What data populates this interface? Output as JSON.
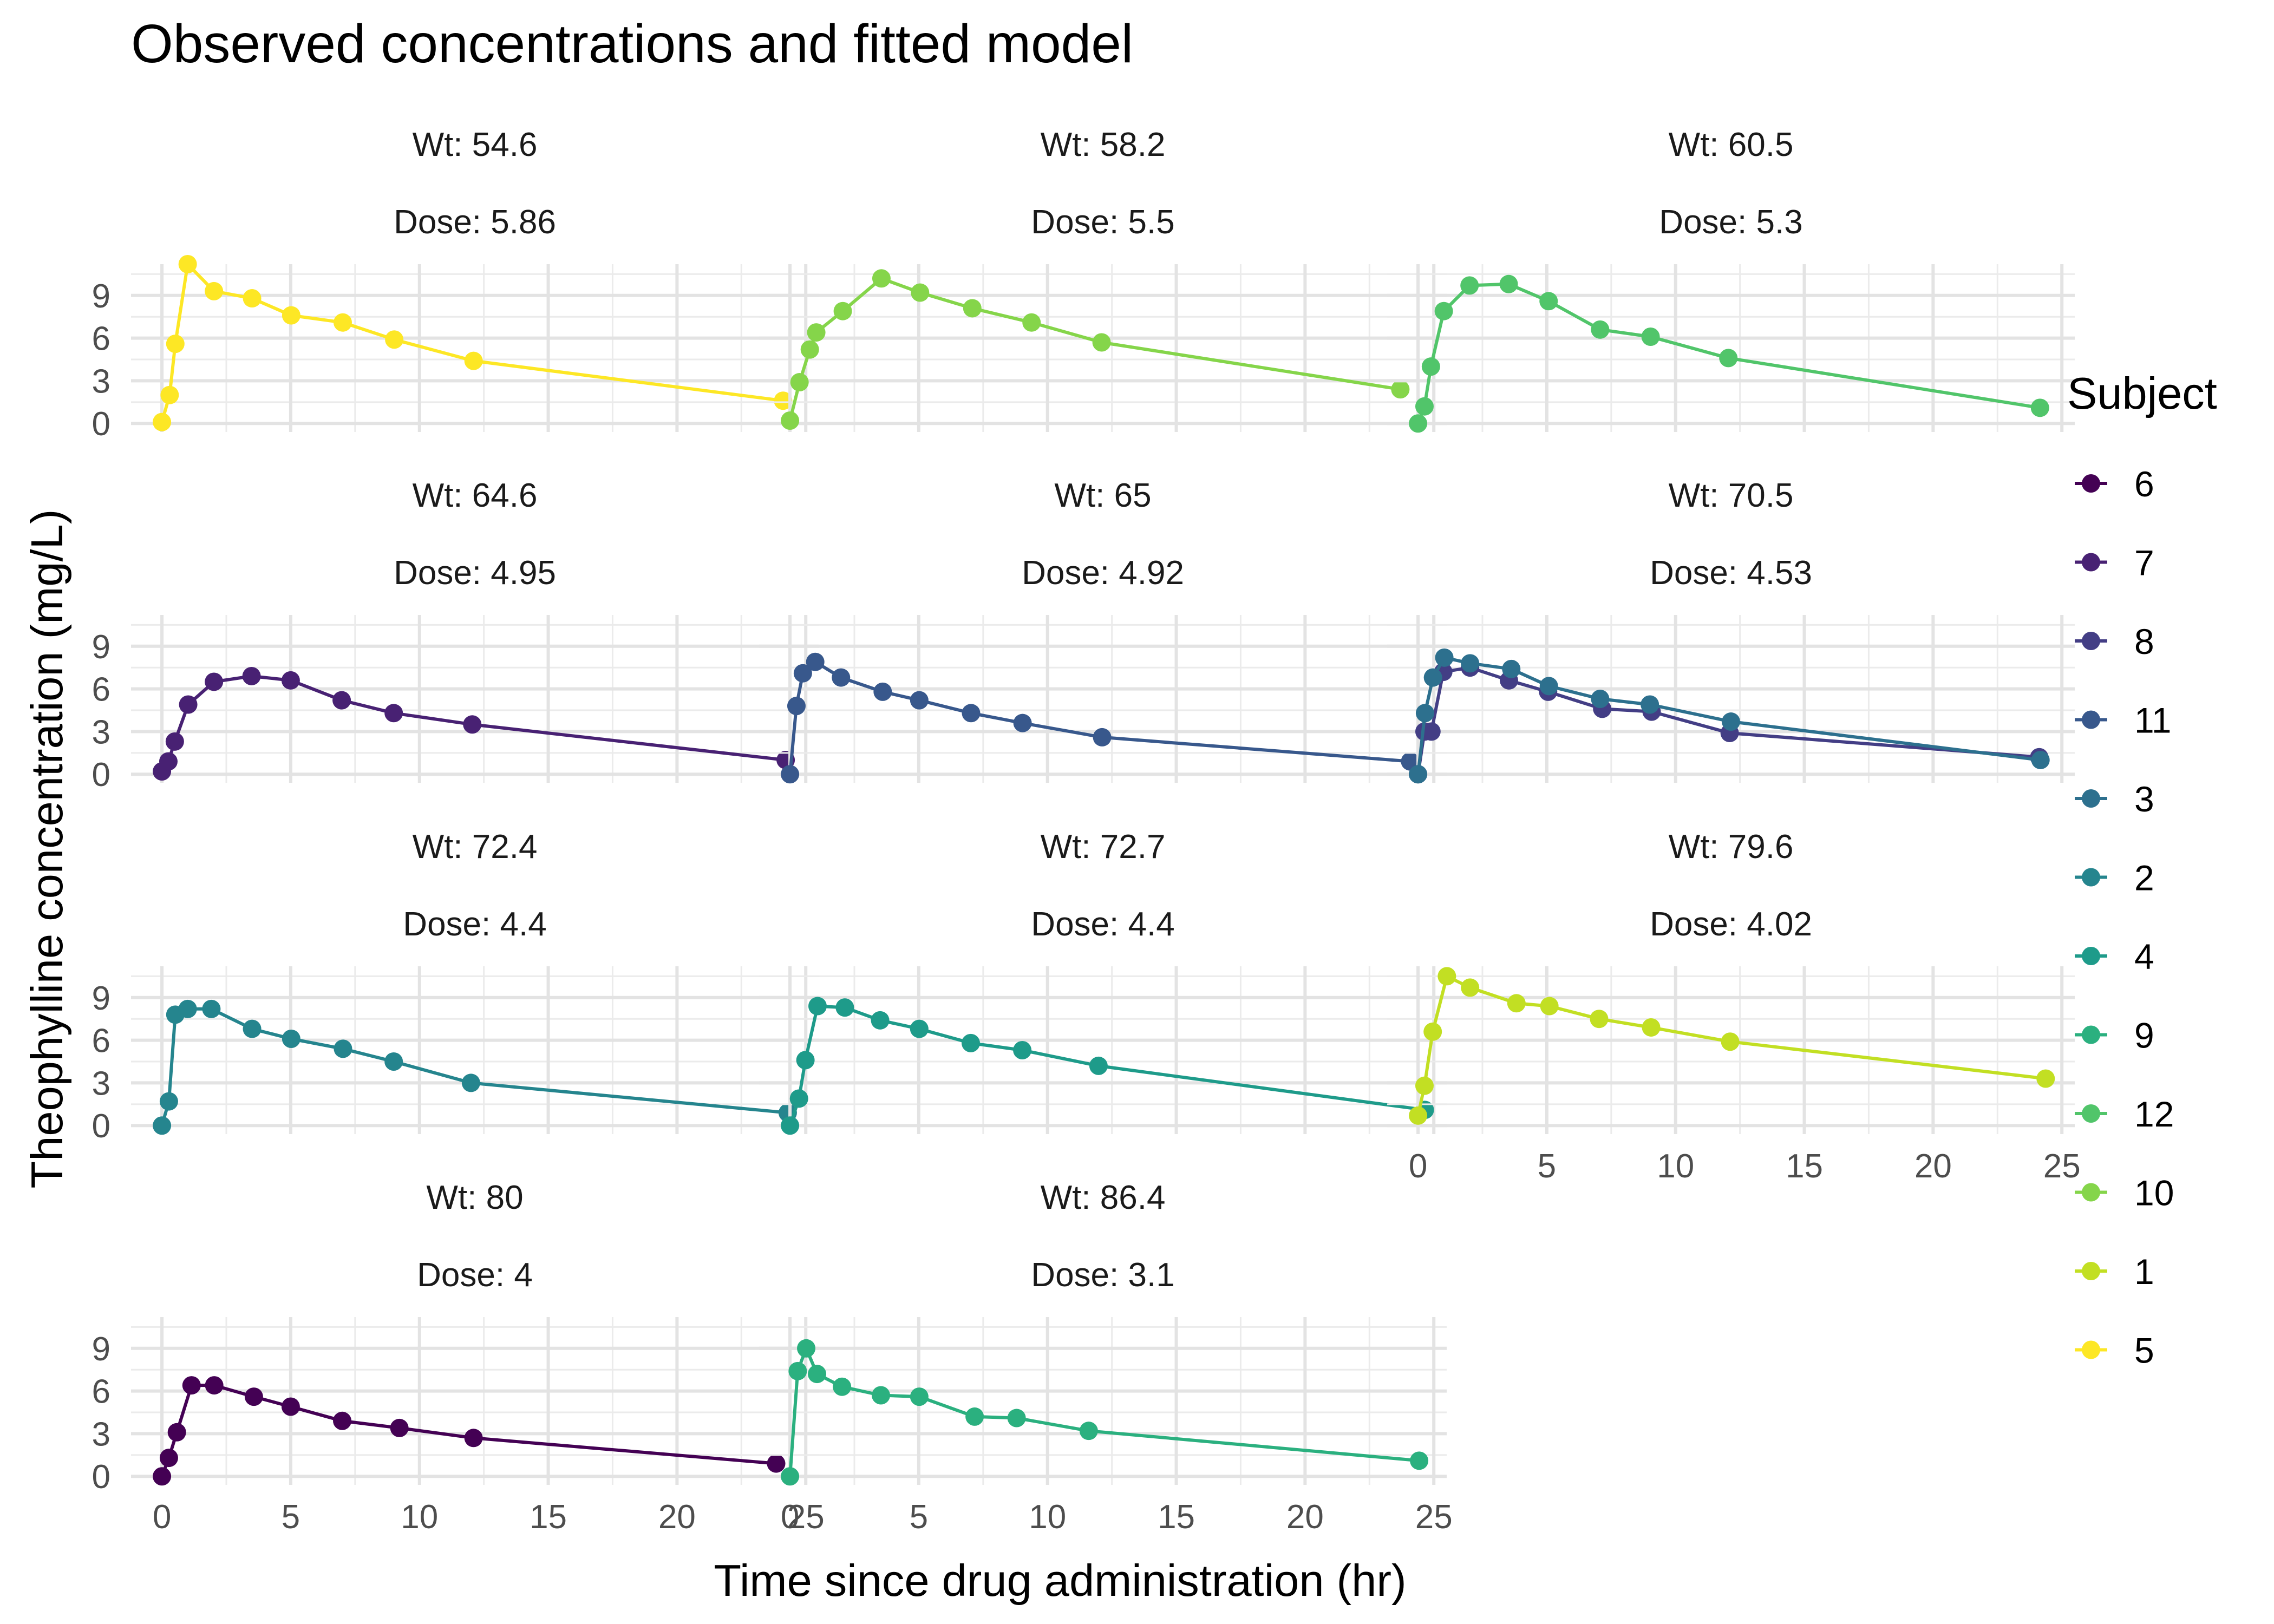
{
  "chart_data": {
    "type": "line",
    "title": "Observed concentrations and fitted model",
    "xlabel": "Time since drug administration (hr)",
    "ylabel": "Theophylline concentration (mg/L)",
    "xlim": [
      -1.2,
      25.5
    ],
    "ylim": [
      -0.6,
      11.2
    ],
    "x_ticks": [
      0,
      5,
      10,
      15,
      20,
      25
    ],
    "y_ticks": [
      0,
      3,
      6,
      9
    ],
    "grid": true,
    "legend": {
      "title": "Subject",
      "position": "right",
      "entries": [
        {
          "label": "6",
          "color": "#440154"
        },
        {
          "label": "7",
          "color": "#482173"
        },
        {
          "label": "8",
          "color": "#433E85"
        },
        {
          "label": "11",
          "color": "#38588C"
        },
        {
          "label": "3",
          "color": "#2D708E"
        },
        {
          "label": "2",
          "color": "#25858E"
        },
        {
          "label": "4",
          "color": "#1E9B8A"
        },
        {
          "label": "9",
          "color": "#2BB07F"
        },
        {
          "label": "12",
          "color": "#51C56A"
        },
        {
          "label": "10",
          "color": "#85D54A"
        },
        {
          "label": "1",
          "color": "#C2DF23"
        },
        {
          "label": "5",
          "color": "#FDE725"
        }
      ]
    },
    "panels": [
      {
        "wt_label": "Wt: 54.6",
        "dose_label": "Dose: 5.86",
        "series": [
          {
            "subject": "5",
            "color": "#FDE725",
            "x": [
              0,
              0.3,
              0.52,
              1.0,
              2.02,
              3.5,
              5.02,
              7.02,
              9.02,
              12.1,
              24.12
            ],
            "y": [
              0.1,
              2.0,
              5.6,
              11.2,
              9.3,
              8.8,
              7.6,
              7.1,
              5.9,
              4.4,
              1.6
            ]
          }
        ]
      },
      {
        "wt_label": "Wt: 58.2",
        "dose_label": "Dose: 5.5",
        "series": [
          {
            "subject": "10",
            "color": "#85D54A",
            "x": [
              0,
              0.37,
              0.77,
              1.02,
              2.05,
              3.55,
              5.05,
              7.08,
              9.38,
              12.1,
              23.7
            ],
            "y": [
              0.2,
              2.9,
              5.2,
              6.4,
              7.9,
              10.2,
              9.2,
              8.1,
              7.1,
              5.7,
              2.4
            ]
          }
        ]
      },
      {
        "wt_label": "Wt: 60.5",
        "dose_label": "Dose: 5.3",
        "series": [
          {
            "subject": "12",
            "color": "#51C56A",
            "x": [
              0,
              0.25,
              0.5,
              1.0,
              2.0,
              3.52,
              5.07,
              7.07,
              9.03,
              12.05,
              24.15
            ],
            "y": [
              0.0,
              1.2,
              4.0,
              7.9,
              9.7,
              9.8,
              8.6,
              6.6,
              6.1,
              4.6,
              1.1
            ]
          }
        ]
      },
      {
        "wt_label": "Wt: 64.6",
        "dose_label": "Dose: 4.95",
        "series": [
          {
            "subject": "7",
            "color": "#482173",
            "x": [
              0,
              0.25,
              0.5,
              1.02,
              2.02,
              3.48,
              5.0,
              6.98,
              9.0,
              12.05,
              24.22
            ],
            "y": [
              0.2,
              0.9,
              2.3,
              4.9,
              6.5,
              6.9,
              6.6,
              5.2,
              4.3,
              3.5,
              1.0
            ]
          }
        ]
      },
      {
        "wt_label": "Wt: 65",
        "dose_label": "Dose: 4.92",
        "series": [
          {
            "subject": "11",
            "color": "#38588C",
            "x": [
              0,
              0.25,
              0.5,
              0.98,
              1.98,
              3.6,
              5.02,
              7.03,
              9.03,
              12.12,
              24.08
            ],
            "y": [
              0.0,
              4.8,
              7.1,
              7.9,
              6.8,
              5.8,
              5.2,
              4.3,
              3.6,
              2.6,
              0.9
            ]
          }
        ]
      },
      {
        "wt_label": "Wt: 70.5",
        "dose_label": "Dose: 4.53",
        "series": [
          {
            "subject": "8",
            "color": "#433E85",
            "x": [
              0,
              0.25,
              0.52,
              0.98,
              2.02,
              3.53,
              5.05,
              7.15,
              9.07,
              12.1,
              24.12
            ],
            "y": [
              0.0,
              3.0,
              3.0,
              7.2,
              7.5,
              6.6,
              5.8,
              4.6,
              4.4,
              2.9,
              1.2
            ]
          },
          {
            "subject": "3",
            "color": "#2D708E",
            "x": [
              0,
              0.27,
              0.58,
              1.02,
              2.02,
              3.62,
              5.08,
              7.07,
              9.0,
              12.15,
              24.17
            ],
            "y": [
              0.0,
              4.3,
              6.8,
              8.2,
              7.8,
              7.4,
              6.2,
              5.3,
              4.9,
              3.7,
              1.0
            ]
          }
        ]
      },
      {
        "wt_label": "Wt: 72.4",
        "dose_label": "Dose: 4.4",
        "series": [
          {
            "subject": "2",
            "color": "#25858E",
            "x": [
              0,
              0.27,
              0.52,
              1.0,
              1.92,
              3.5,
              5.02,
              7.03,
              9.0,
              12.0,
              24.3
            ],
            "y": [
              0.0,
              1.7,
              7.8,
              8.2,
              8.2,
              6.8,
              6.1,
              5.4,
              4.5,
              3.0,
              0.9
            ]
          }
        ]
      },
      {
        "wt_label": "Wt: 72.7",
        "dose_label": "Dose: 4.4",
        "series": [
          {
            "subject": "4",
            "color": "#1E9B8A",
            "x": [
              0,
              0.35,
              0.6,
              1.07,
              2.13,
              3.5,
              5.02,
              7.02,
              9.02,
              11.98,
              24.65
            ],
            "y": [
              0.0,
              1.9,
              4.6,
              8.4,
              8.3,
              7.4,
              6.8,
              5.8,
              5.3,
              4.2,
              1.1
            ]
          }
        ]
      },
      {
        "wt_label": "Wt: 79.6",
        "dose_label": "Dose: 4.02",
        "series": [
          {
            "subject": "1",
            "color": "#C2DF23",
            "x": [
              0,
              0.25,
              0.57,
              1.12,
              2.02,
              3.82,
              5.1,
              7.03,
              9.05,
              12.12,
              24.37
            ],
            "y": [
              0.7,
              2.8,
              6.6,
              10.5,
              9.7,
              8.6,
              8.4,
              7.5,
              6.9,
              5.9,
              3.3
            ]
          }
        ]
      },
      {
        "wt_label": "Wt: 80",
        "dose_label": "Dose: 4",
        "series": [
          {
            "subject": "6",
            "color": "#440154",
            "x": [
              0,
              0.27,
              0.58,
              1.15,
              2.03,
              3.57,
              5.0,
              7.0,
              9.22,
              12.1,
              23.85
            ],
            "y": [
              0.0,
              1.3,
              3.1,
              6.4,
              6.4,
              5.6,
              4.9,
              3.9,
              3.4,
              2.7,
              0.9
            ]
          }
        ]
      },
      {
        "wt_label": "Wt: 86.4",
        "dose_label": "Dose: 3.1",
        "series": [
          {
            "subject": "9",
            "color": "#2BB07F",
            "x": [
              0,
              0.3,
              0.63,
              1.05,
              2.02,
              3.53,
              5.02,
              7.17,
              8.8,
              11.6,
              24.43
            ],
            "y": [
              0.0,
              7.4,
              9.0,
              7.2,
              6.3,
              5.7,
              5.6,
              4.2,
              4.1,
              3.2,
              1.1
            ]
          }
        ]
      }
    ]
  }
}
